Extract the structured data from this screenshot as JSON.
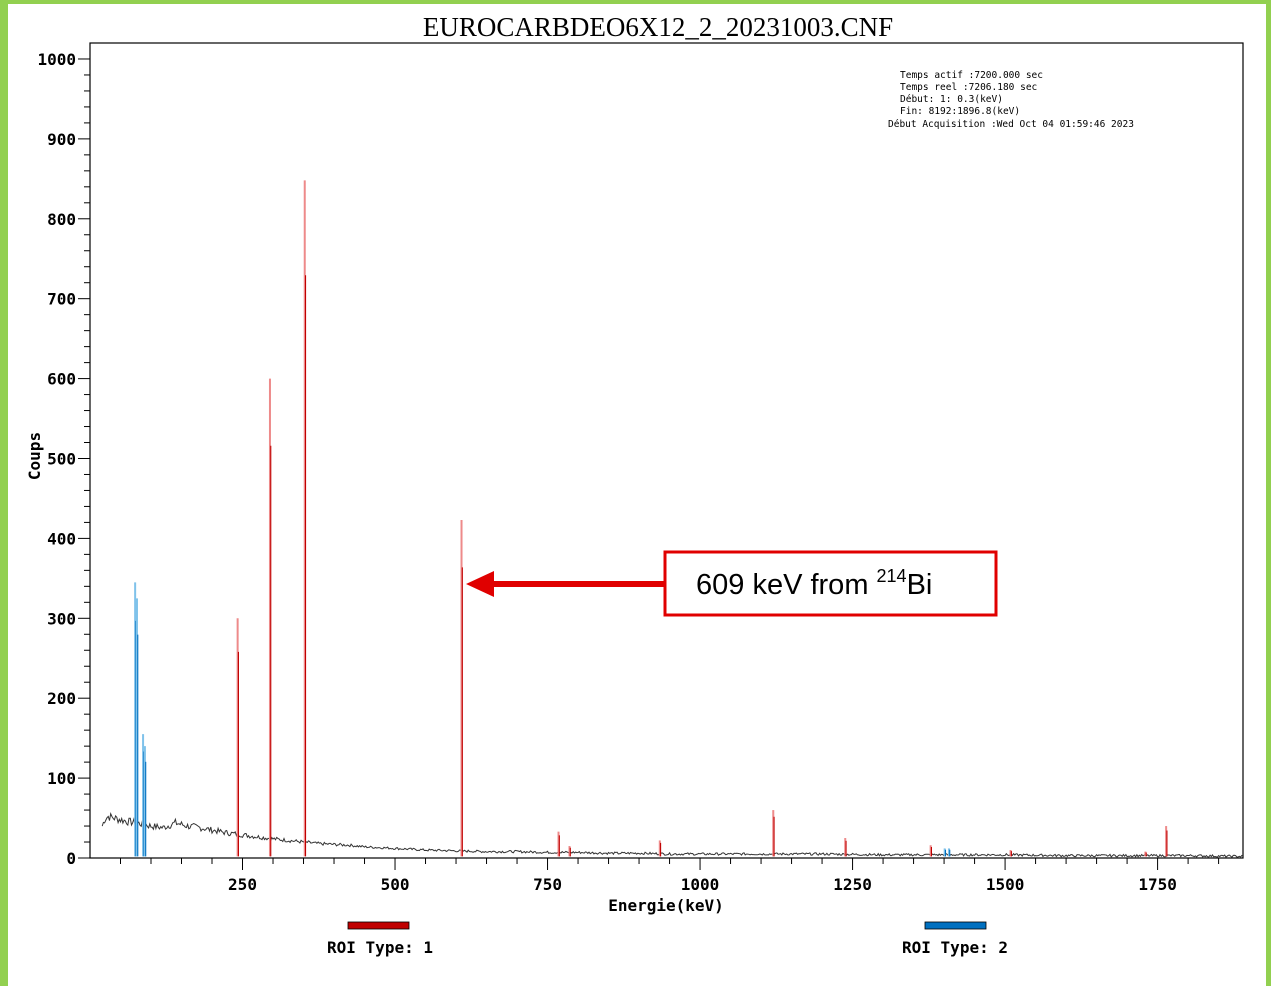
{
  "chart_data": {
    "type": "line",
    "title": "EUROCARBDEO6X12_2_20231003.CNF",
    "xlabel": "Energie(keV)",
    "ylabel": "Coups",
    "xlim": [
      0,
      1890
    ],
    "ylim": [
      0,
      1020
    ],
    "x_ticks": [
      250,
      500,
      750,
      1000,
      1250,
      1500,
      1750
    ],
    "x_tick_labels": [
      "250",
      "500",
      "750",
      "1000",
      "1250",
      "1500",
      "1750"
    ],
    "y_ticks": [
      0,
      100,
      200,
      300,
      400,
      500,
      600,
      700,
      800,
      900,
      1000
    ],
    "y_tick_labels": [
      "0",
      "100",
      "200",
      "300",
      "400",
      "500",
      "600",
      "700",
      "800",
      "900",
      "1000"
    ],
    "info_box": [
      "Temps actif   :7200.000 sec",
      "Temps reel :7206.180 sec",
      "Début:    1:   0.3(keV)",
      "Fin: 8192:1896.8(keV)",
      "Début Acquisition :Wed Oct 04 01:59:46 2023"
    ],
    "legend": [
      {
        "label": "ROI Type: 1",
        "color": "#c00000"
      },
      {
        "label": "ROI Type: 2",
        "color": "#0070c0"
      }
    ],
    "annotation": {
      "text_main": "609 keV from ",
      "superscript": "214",
      "text_end": "Bi",
      "target_energy": 609,
      "target_counts": 345,
      "color": "#e00000"
    },
    "background_points": [
      [
        20,
        40
      ],
      [
        25,
        50
      ],
      [
        30,
        52
      ],
      [
        40,
        50
      ],
      [
        50,
        48
      ],
      [
        60,
        46
      ],
      [
        75,
        44
      ],
      [
        90,
        42
      ],
      [
        100,
        40
      ],
      [
        120,
        38
      ],
      [
        140,
        44
      ],
      [
        160,
        40
      ],
      [
        180,
        38
      ],
      [
        200,
        35
      ],
      [
        220,
        32
      ],
      [
        240,
        30
      ],
      [
        260,
        28
      ],
      [
        280,
        26
      ],
      [
        300,
        24
      ],
      [
        325,
        22
      ],
      [
        350,
        20
      ],
      [
        375,
        18
      ],
      [
        400,
        17
      ],
      [
        425,
        16
      ],
      [
        450,
        14
      ],
      [
        475,
        13
      ],
      [
        500,
        12
      ],
      [
        550,
        10
      ],
      [
        600,
        9
      ],
      [
        650,
        8
      ],
      [
        700,
        8
      ],
      [
        750,
        7
      ],
      [
        800,
        7
      ],
      [
        850,
        6
      ],
      [
        900,
        6
      ],
      [
        950,
        5
      ],
      [
        1000,
        5
      ],
      [
        1100,
        5
      ],
      [
        1200,
        5
      ],
      [
        1300,
        4
      ],
      [
        1400,
        4
      ],
      [
        1500,
        4
      ],
      [
        1600,
        3
      ],
      [
        1700,
        3
      ],
      [
        1800,
        3
      ],
      [
        1890,
        2
      ]
    ],
    "peaks": [
      {
        "energy": 74,
        "counts": 345,
        "roi": 2
      },
      {
        "energy": 77,
        "counts": 325,
        "roi": 2
      },
      {
        "energy": 87,
        "counts": 155,
        "roi": 2
      },
      {
        "energy": 90,
        "counts": 140,
        "roi": 2
      },
      {
        "energy": 242,
        "counts": 300,
        "roi": 1
      },
      {
        "energy": 295,
        "counts": 600,
        "roi": 1
      },
      {
        "energy": 352,
        "counts": 848,
        "roi": 1
      },
      {
        "energy": 609,
        "counts": 423,
        "roi": 1
      },
      {
        "energy": 768,
        "counts": 33,
        "roi": 1
      },
      {
        "energy": 786,
        "counts": 15,
        "roi": 1
      },
      {
        "energy": 934,
        "counts": 22,
        "roi": 1
      },
      {
        "energy": 1120,
        "counts": 60,
        "roi": 1
      },
      {
        "energy": 1238,
        "counts": 25,
        "roi": 1
      },
      {
        "energy": 1378,
        "counts": 16,
        "roi": 1
      },
      {
        "energy": 1401,
        "counts": 12,
        "roi": 2
      },
      {
        "energy": 1408,
        "counts": 12,
        "roi": 2
      },
      {
        "energy": 1509,
        "counts": 10,
        "roi": 1
      },
      {
        "energy": 1730,
        "counts": 8,
        "roi": 1
      },
      {
        "energy": 1764,
        "counts": 40,
        "roi": 1
      }
    ]
  }
}
